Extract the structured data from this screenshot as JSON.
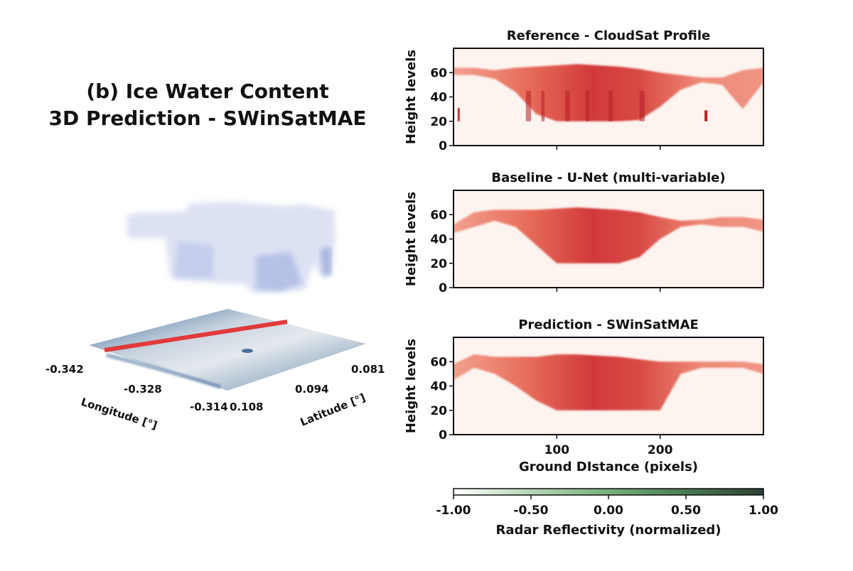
{
  "figure_title": [
    "(b) Ice Water Content",
    "3D Prediction - SWinSatMAE"
  ],
  "left_3d": {
    "longitude_label": "Longitude [°]",
    "latitude_label": "Latitude [°]",
    "longitude_ticks": [
      "-0.342",
      "-0.328",
      "-0.314"
    ],
    "latitude_ticks": [
      "0.108",
      "0.094",
      "0.081"
    ],
    "track_color": "#e03a3a",
    "cloud_color": "#a9b5e0",
    "surface_colors": [
      "#dfe6ee",
      "#2c5a8c"
    ]
  },
  "chart_data": [
    {
      "type": "heatmap",
      "title": "Reference - CloudSat Profile",
      "ylabel": "Height levels",
      "xlabel": "",
      "xlim": [
        0,
        300
      ],
      "ylim": [
        0,
        80
      ],
      "yticks": [
        "0",
        "20",
        "40",
        "60"
      ],
      "xticks": [],
      "x": [
        0,
        20,
        40,
        60,
        80,
        100,
        120,
        140,
        160,
        180,
        200,
        220,
        240,
        260,
        280,
        300
      ],
      "cloud_top": [
        64,
        64,
        62,
        64,
        65,
        66,
        67,
        66,
        65,
        63,
        60,
        58,
        56,
        56,
        62,
        64
      ],
      "cloud_base": [
        58,
        58,
        55,
        44,
        26,
        20,
        20,
        20,
        20,
        21,
        32,
        46,
        52,
        50,
        30,
        52
      ]
    },
    {
      "type": "heatmap",
      "title": "Baseline - U-Net (multi-variable)",
      "ylabel": "Height levels",
      "xlabel": "",
      "xlim": [
        0,
        300
      ],
      "ylim": [
        0,
        80
      ],
      "yticks": [
        "0",
        "20",
        "40",
        "60"
      ],
      "xticks": [],
      "x": [
        0,
        20,
        40,
        60,
        80,
        100,
        120,
        140,
        160,
        180,
        200,
        220,
        240,
        260,
        280,
        300
      ],
      "cloud_top": [
        52,
        62,
        64,
        64,
        64,
        65,
        66,
        65,
        64,
        62,
        58,
        55,
        56,
        58,
        58,
        56
      ],
      "cloud_base": [
        45,
        50,
        55,
        50,
        35,
        20,
        20,
        20,
        20,
        25,
        40,
        50,
        52,
        50,
        50,
        46
      ]
    },
    {
      "type": "heatmap",
      "title": "Prediction - SWinSatMAE",
      "ylabel": "Height levels",
      "xlabel": "Ground DIstance (pixels)",
      "xlim": [
        0,
        300
      ],
      "ylim": [
        0,
        80
      ],
      "yticks": [
        "0",
        "20",
        "40",
        "60"
      ],
      "xticks": [
        "100",
        "200"
      ],
      "x": [
        0,
        20,
        40,
        60,
        80,
        100,
        120,
        140,
        160,
        180,
        200,
        220,
        240,
        260,
        280,
        300
      ],
      "cloud_top": [
        58,
        66,
        64,
        64,
        64,
        66,
        66,
        65,
        64,
        62,
        60,
        60,
        60,
        60,
        60,
        58
      ],
      "cloud_base": [
        45,
        55,
        50,
        40,
        28,
        20,
        20,
        20,
        20,
        20,
        20,
        50,
        55,
        55,
        55,
        50
      ]
    }
  ],
  "colorbar": {
    "label": "Radar Reflectivity (normalized)",
    "range": [
      -1,
      1
    ],
    "ticks": [
      "-1.00",
      "-0.50",
      "0.00",
      "0.50",
      "1.00"
    ],
    "colors": [
      "#ffffff",
      "#a8cfa8",
      "#6fa872",
      "#3f6a48",
      "#2b3f30"
    ]
  },
  "heatmap_colors": {
    "background": "#fdf3ef",
    "light": "#ee8a78",
    "dark": "#c22a2a"
  }
}
